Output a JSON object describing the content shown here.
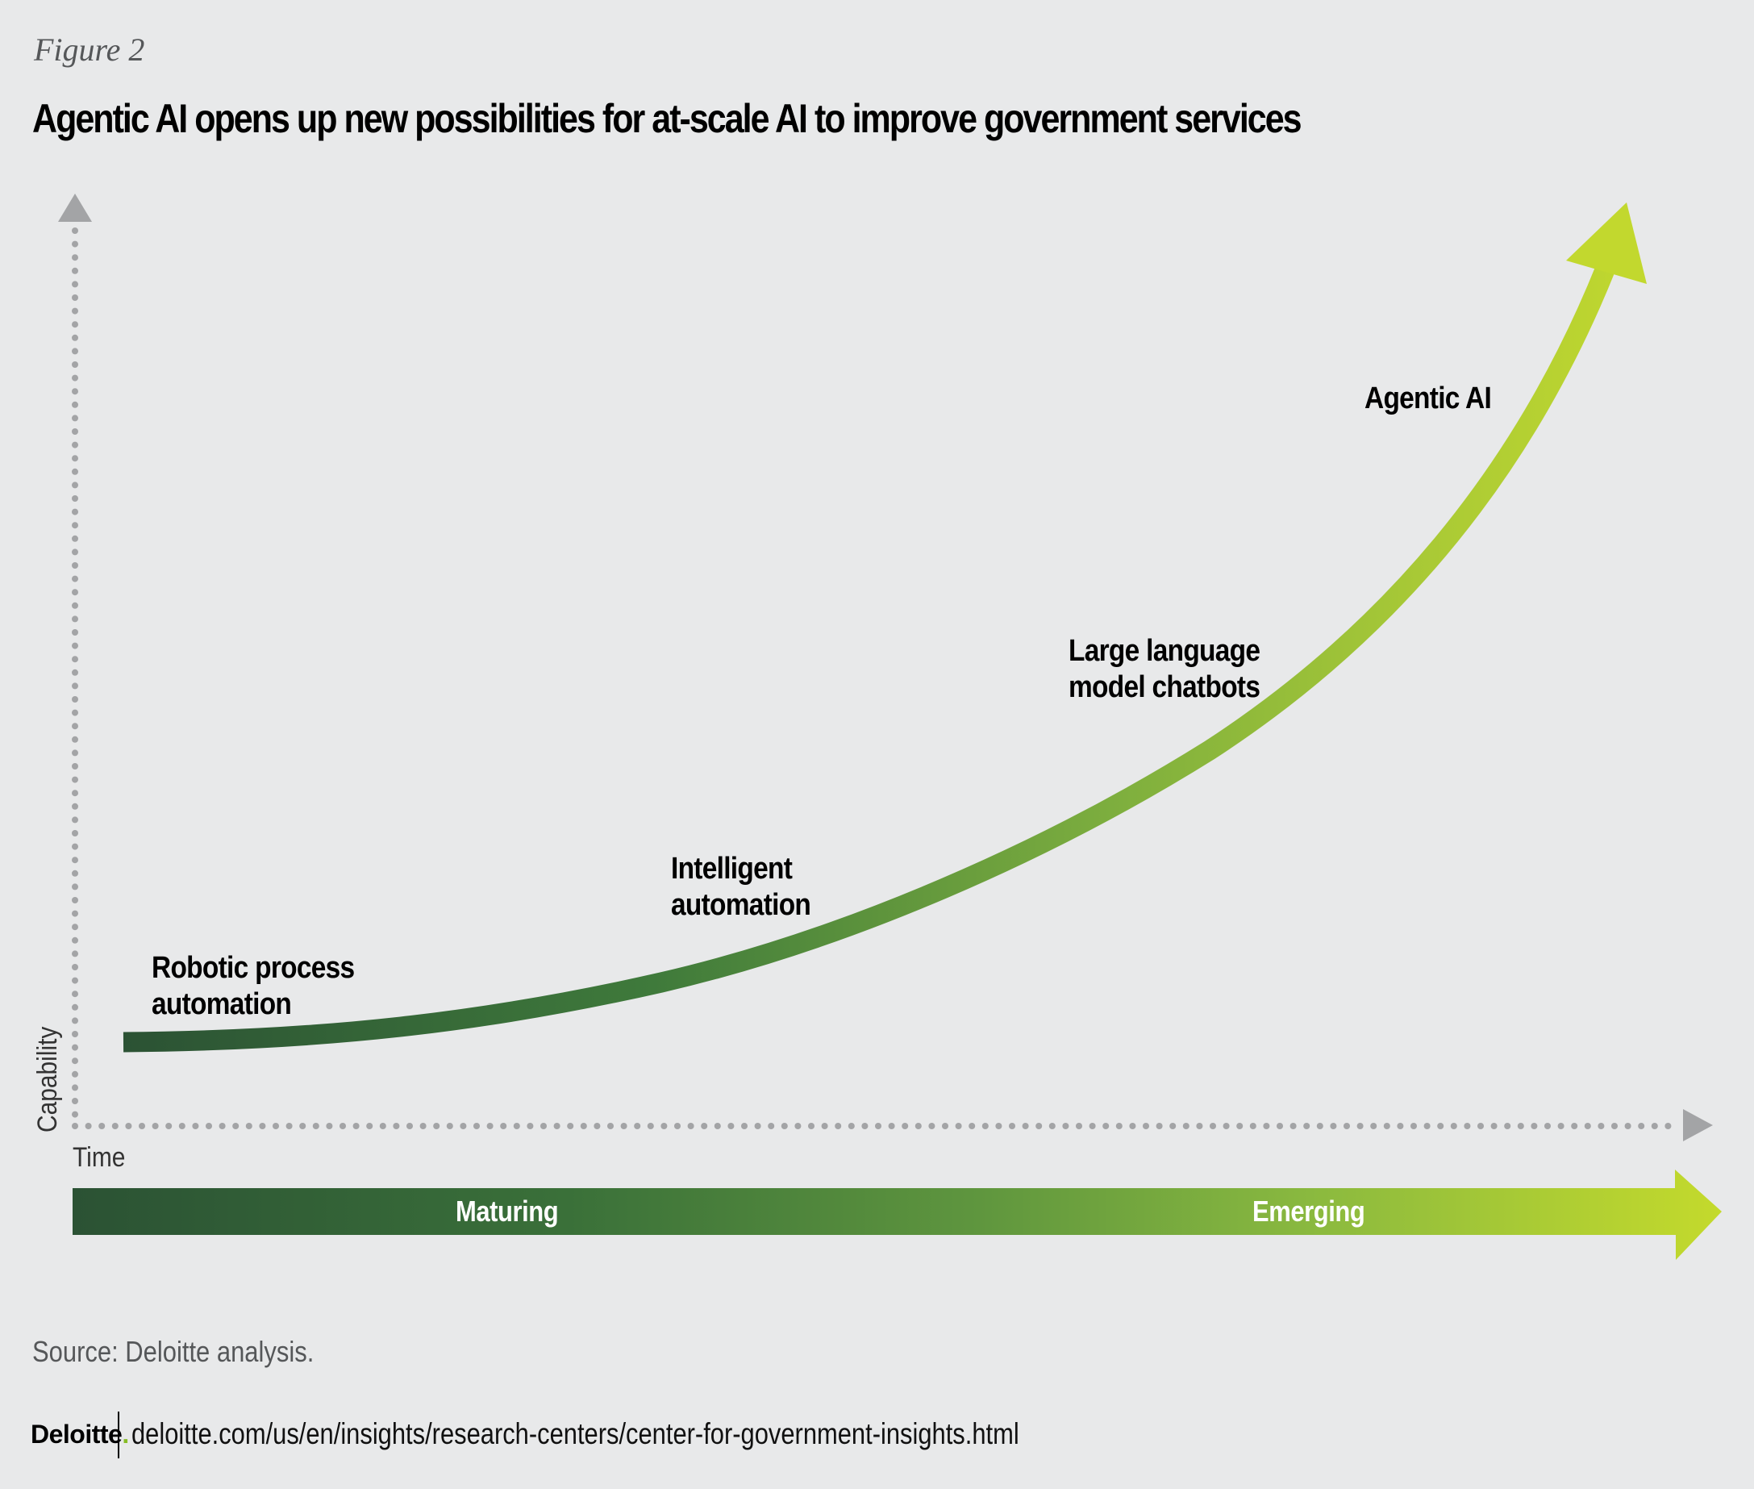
{
  "header": {
    "figure_label": "Figure 2",
    "title": "Agentic AI opens up new possibilities for at-scale AI to improve government services"
  },
  "chart_data": {
    "type": "line",
    "title": "Agentic AI opens up new possibilities for at-scale AI to improve government services",
    "xlabel": "Time",
    "ylabel": "Capability",
    "grid": false,
    "axis_style": "dotted arrows, no ticks",
    "curve": {
      "description": "Exponential-style growth curve ending in an arrowhead, colored with gradient from dark green to lime",
      "gradient": [
        "#2b5234",
        "#4a8a3d",
        "#8cba3e",
        "#c2d82e"
      ]
    },
    "stages": [
      {
        "name": "Robotic process automation",
        "lines": [
          "Robotic process",
          "automation"
        ],
        "order": 1
      },
      {
        "name": "Intelligent automation",
        "lines": [
          "Intelligent",
          "automation"
        ],
        "order": 2
      },
      {
        "name": "Large language model chatbots",
        "lines": [
          "Large language",
          "model chatbots"
        ],
        "order": 3
      },
      {
        "name": "Agentic AI",
        "lines": [
          "Agentic AI"
        ],
        "order": 4
      }
    ],
    "maturity_band": {
      "labels": [
        "Maturing",
        "Emerging"
      ],
      "gradient": [
        "#2b5234",
        "#3b7a3c",
        "#7aaa3e",
        "#c2d82e"
      ]
    }
  },
  "colors": {
    "background": "#e8e9ea",
    "axis": "#a3a4a6",
    "text": "#000000",
    "muted_text": "#555759",
    "deloitte_green": "#86bc25"
  },
  "footer": {
    "source": "Source: Deloitte analysis.",
    "logo_text": "Deloitte",
    "logo_dot": ".",
    "url": "deloitte.com/us/en/insights/research-centers/center-for-government-insights.html"
  }
}
